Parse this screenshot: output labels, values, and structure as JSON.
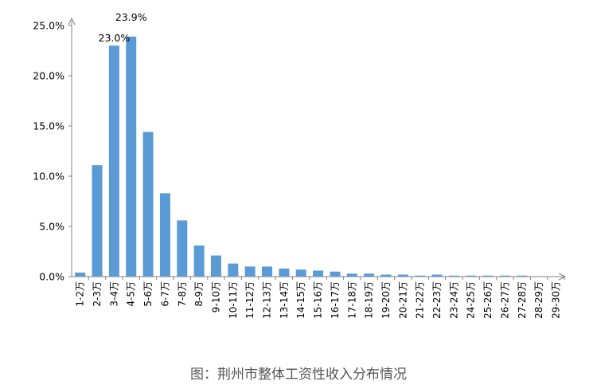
{
  "caption": "图：荆州市整体工资性收入分布情况",
  "chart_data": {
    "type": "bar",
    "categories": [
      "1-2万",
      "2-3万",
      "3-4万",
      "4-5万",
      "5-6万",
      "6-7万",
      "7-8万",
      "8-9万",
      "9-10万",
      "10-11万",
      "11-12万",
      "12-13万",
      "13-14万",
      "14-15万",
      "15-16万",
      "16-17万",
      "17-18万",
      "18-19万",
      "19-20万",
      "20-21万",
      "21-22万",
      "22-23万",
      "23-24万",
      "24-25万",
      "25-26万",
      "26-27万",
      "27-28万",
      "28-29万",
      "29-30万"
    ],
    "values": [
      0.4,
      11.1,
      23.0,
      23.9,
      14.4,
      8.3,
      5.6,
      3.1,
      2.1,
      1.3,
      1.0,
      1.0,
      0.8,
      0.7,
      0.6,
      0.5,
      0.3,
      0.3,
      0.2,
      0.2,
      0.1,
      0.2,
      0.1,
      0.1,
      0.1,
      0.1,
      0.1,
      0.0,
      0.0
    ],
    "data_labels": [
      {
        "index": 2,
        "text": "23.0%"
      },
      {
        "index": 3,
        "text": "23.9%"
      }
    ],
    "yticks": [
      "0.0%",
      "5.0%",
      "10.0%",
      "15.0%",
      "20.0%",
      "25.0%"
    ],
    "ylim": [
      0,
      25
    ],
    "grid": false,
    "colors": {
      "bar": "#5b9bd5",
      "axis": "#808080",
      "text": "#000000"
    }
  }
}
